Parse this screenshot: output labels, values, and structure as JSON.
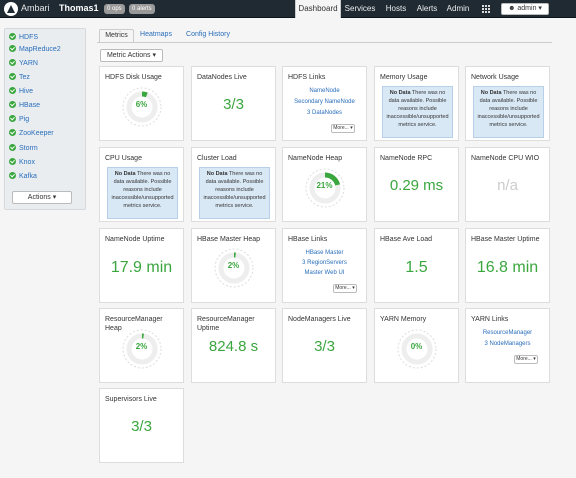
{
  "header": {
    "brand": "Ambari",
    "cluster": "Thomas1",
    "ops_badge": "0 ops",
    "alerts_badge": "0 alerts",
    "nav": [
      "Dashboard",
      "Services",
      "Hosts",
      "Alerts",
      "Admin"
    ],
    "user": "admin"
  },
  "sidebar": {
    "services": [
      "HDFS",
      "MapReduce2",
      "YARN",
      "Tez",
      "Hive",
      "HBase",
      "Pig",
      "ZooKeeper",
      "Storm",
      "Knox",
      "Kafka"
    ],
    "actions": "Actions"
  },
  "tabs": [
    "Metrics",
    "Heatmaps",
    "Config History"
  ],
  "metric_actions": "Metric Actions",
  "nodata": {
    "bold": "No Data",
    "text": " There was no data available. Possible reasons include inaccessible/unsupported metrics service."
  },
  "widgets": {
    "hdfs_disk": {
      "title": "HDFS Disk Usage",
      "value": "6%",
      "fraction": 0.06
    },
    "datanodes": {
      "title": "DataNodes Live",
      "value": "3/3"
    },
    "hdfs_links": {
      "title": "HDFS Links",
      "links": [
        "NameNode",
        "Secondary NameNode",
        "3 DataNodes"
      ],
      "more": "More..."
    },
    "memory": {
      "title": "Memory Usage"
    },
    "network": {
      "title": "Network Usage"
    },
    "cpu": {
      "title": "CPU Usage"
    },
    "cluster_load": {
      "title": "Cluster Load"
    },
    "nn_heap": {
      "title": "NameNode Heap",
      "value": "21%",
      "fraction": 0.21
    },
    "nn_rpc": {
      "title": "NameNode RPC",
      "value": "0.29 ms"
    },
    "nn_cpu": {
      "title": "NameNode CPU WIO",
      "value": "n/a"
    },
    "nn_uptime": {
      "title": "NameNode Uptime",
      "value": "17.9 min"
    },
    "hbase_heap": {
      "title": "HBase Master Heap",
      "value": "2%",
      "fraction": 0.02
    },
    "hbase_links": {
      "title": "HBase Links",
      "links": [
        "HBase Master",
        "3 RegionServers",
        "Master Web UI"
      ],
      "more": "More..."
    },
    "hbase_load": {
      "title": "HBase Ave Load",
      "value": "1.5"
    },
    "hbase_uptime": {
      "title": "HBase Master Uptime",
      "value": "16.8 min"
    },
    "rm_heap": {
      "title": "ResourceManager Heap",
      "value": "2%",
      "fraction": 0.02
    },
    "rm_uptime": {
      "title": "ResourceManager Uptime",
      "value": "824.8 s"
    },
    "nm_live": {
      "title": "NodeManagers Live",
      "value": "3/3"
    },
    "yarn_memory": {
      "title": "YARN Memory",
      "value": "0%",
      "fraction": 0.0
    },
    "yarn_links": {
      "title": "YARN Links",
      "links": [
        "ResourceManager",
        "3 NodeManagers"
      ],
      "more": "More..."
    },
    "supervisors": {
      "title": "Supervisors Live",
      "value": "3/3"
    }
  }
}
